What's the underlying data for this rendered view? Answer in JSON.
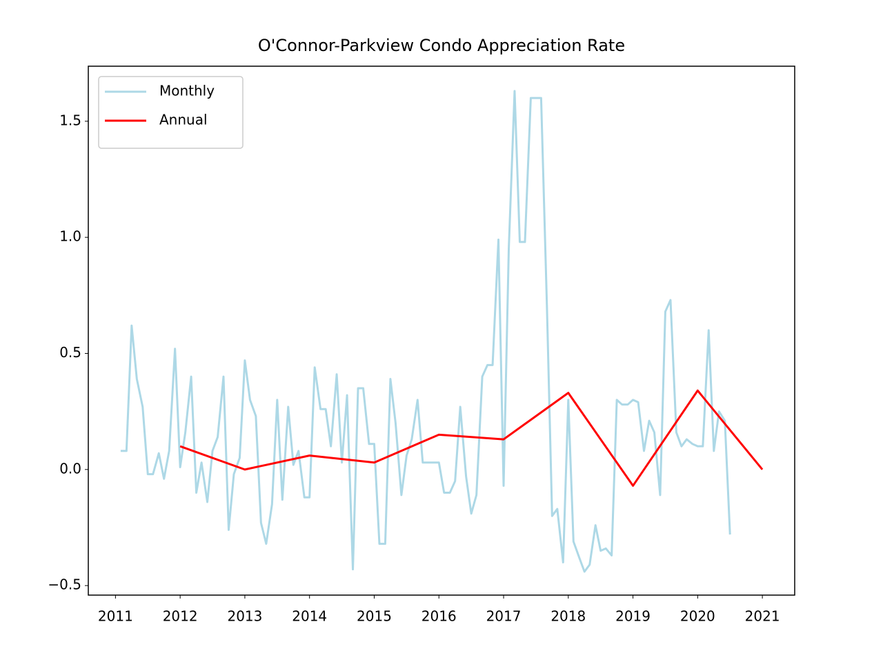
{
  "chart_data": {
    "type": "line",
    "title": "O'Connor-Parkview Condo Appreciation Rate",
    "xlim": [
      2010.58,
      2021.5
    ],
    "xticks": [
      2011,
      2012,
      2013,
      2014,
      2015,
      2016,
      2017,
      2018,
      2019,
      2020,
      2021
    ],
    "ylim": [
      -0.541,
      1.737
    ],
    "yticks": [
      {
        "value": -0.5,
        "label": "−0.5"
      },
      {
        "value": 0,
        "label": "0.0"
      },
      0.5,
      {
        "value": 1,
        "label": "1.0"
      },
      1.5
    ],
    "legend": "upper left",
    "series": [
      {
        "name": "Monthly",
        "color": "#add8e6",
        "x": [
          2011.08,
          2011.17,
          2011.25,
          2011.33,
          2011.42,
          2011.5,
          2011.58,
          2011.67,
          2011.75,
          2011.83,
          2011.92,
          2012.0,
          2012.08,
          2012.17,
          2012.25,
          2012.33,
          2012.42,
          2012.5,
          2012.58,
          2012.67,
          2012.75,
          2012.83,
          2012.92,
          2013.0,
          2013.08,
          2013.17,
          2013.25,
          2013.33,
          2013.42,
          2013.5,
          2013.58,
          2013.67,
          2013.75,
          2013.83,
          2013.92,
          2014.0,
          2014.08,
          2014.17,
          2014.25,
          2014.33,
          2014.42,
          2014.5,
          2014.58,
          2014.67,
          2014.75,
          2014.83,
          2014.92,
          2015.0,
          2015.08,
          2015.17,
          2015.25,
          2015.33,
          2015.42,
          2015.5,
          2015.58,
          2015.67,
          2015.75,
          2015.83,
          2015.92,
          2016.0,
          2016.08,
          2016.17,
          2016.25,
          2016.33,
          2016.42,
          2016.5,
          2016.58,
          2016.67,
          2016.75,
          2016.83,
          2016.92,
          2017.0,
          2017.08,
          2017.17,
          2017.25,
          2017.33,
          2017.42,
          2017.5,
          2017.58,
          2017.67,
          2017.75,
          2017.83,
          2017.92,
          2018.0,
          2018.08,
          2018.17,
          2018.25,
          2018.33,
          2018.42,
          2018.5,
          2018.58,
          2018.67,
          2018.75,
          2018.83,
          2018.92,
          2019.0,
          2019.08,
          2019.17,
          2019.25,
          2019.33,
          2019.42,
          2019.5,
          2019.58,
          2019.67,
          2019.75,
          2019.83,
          2019.92,
          2020.0,
          2020.08,
          2020.17,
          2020.25,
          2020.33,
          2020.42,
          2020.5
        ],
        "values": [
          0.08,
          0.08,
          0.62,
          0.39,
          0.27,
          -0.02,
          -0.02,
          0.07,
          -0.04,
          0.08,
          0.52,
          0.01,
          0.16,
          0.4,
          -0.1,
          0.03,
          -0.14,
          0.08,
          0.14,
          0.4,
          -0.26,
          -0.02,
          0.05,
          0.47,
          0.3,
          0.23,
          -0.23,
          -0.32,
          -0.15,
          0.3,
          -0.13,
          0.27,
          0.02,
          0.08,
          -0.12,
          -0.12,
          0.44,
          0.26,
          0.26,
          0.1,
          0.41,
          0.03,
          0.32,
          -0.43,
          0.35,
          0.35,
          0.11,
          0.11,
          -0.32,
          -0.32,
          0.39,
          0.2,
          -0.11,
          0.06,
          0.13,
          0.3,
          0.03,
          0.03,
          0.03,
          0.03,
          -0.1,
          -0.1,
          -0.05,
          0.27,
          -0.03,
          -0.19,
          -0.11,
          0.4,
          0.45,
          0.45,
          0.99,
          -0.07,
          0.95,
          1.63,
          0.98,
          0.98,
          1.6,
          1.6,
          1.6,
          0.7,
          -0.2,
          -0.17,
          -0.4,
          0.3,
          -0.31,
          -0.38,
          -0.44,
          -0.41,
          -0.24,
          -0.35,
          -0.34,
          -0.37,
          0.3,
          0.28,
          0.28,
          0.3,
          0.29,
          0.08,
          0.21,
          0.16,
          -0.11,
          0.68,
          0.73,
          0.16,
          0.1,
          0.13,
          0.11,
          0.1,
          0.1,
          0.6,
          0.08,
          0.25,
          0.21,
          -0.28
        ]
      },
      {
        "name": "Annual",
        "color": "#ff0000",
        "x": [
          2012,
          2013,
          2014,
          2015,
          2016,
          2017,
          2018,
          2019,
          2020,
          2021
        ],
        "values": [
          0.1,
          0.0,
          0.06,
          0.03,
          0.15,
          0.13,
          0.33,
          -0.07,
          0.34,
          0.0
        ]
      }
    ]
  }
}
